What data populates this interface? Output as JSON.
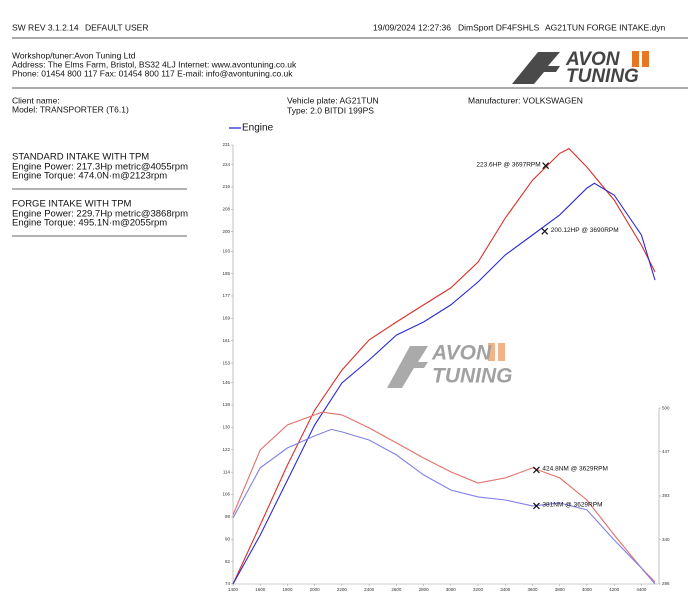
{
  "header": {
    "software": "SW REV 3.1.2.14",
    "user": "DEFAULT USER",
    "datetime": "19/09/2024 12:27:36",
    "device": "DimSport DF4FSHLS",
    "file": "AG21TUN FORGE INTAKE.dyn"
  },
  "workshop": {
    "line1": "Workshop/tuner:Avon Tuning Ltd",
    "line2": "Address: The Elms Farm, Bristol, BS32 4LJ Internet: www.avontuning.co.uk",
    "line3": "Phone: 01454 800 117 Fax: 01454 800 117 E-mail: info@avontuning.co.uk"
  },
  "logo": {
    "word1": "AVON",
    "word2": "TUNING"
  },
  "vehicle": {
    "client": "Client name:",
    "model": "Model: TRANSPORTER (T6.1)",
    "plate": "Vehicle plate: AG21TUN",
    "type": "Type: 2.0 BITDI 199PS",
    "manufacturer": "Manufacturer: VOLKSWAGEN"
  },
  "runs": [
    {
      "name": "STANDARD INTAKE WITH TPM",
      "color": "#2a2ad4",
      "power": "Engine Power: 217.3Hp metric@4055rpm",
      "torque": "Engine Torque: 474.0N·m@2123rpm"
    },
    {
      "name": "FORGE INTAKE WITH TPM",
      "color": "#d8302a",
      "power": "Engine Power: 229.7Hp metric@3868rpm",
      "torque": "Engine Torque: 495.1N·m@2055rpm"
    }
  ],
  "chart_data": {
    "type": "line",
    "legend": "Engine",
    "legend_color": "#2a2ad4",
    "xlim": [
      1400,
      4500
    ],
    "xticks": [
      1400,
      1600,
      1800,
      2000,
      2200,
      2400,
      2600,
      2800,
      3000,
      3200,
      3400,
      3600,
      3800,
      4000,
      4200,
      4400
    ],
    "ylim": [
      74,
      231
    ],
    "yticks": [
      74,
      82,
      90,
      98,
      106,
      114,
      122,
      130,
      138,
      146,
      153,
      161,
      169,
      177,
      185,
      193,
      200,
      208,
      216,
      224,
      231
    ],
    "y2lim": [
      286,
      820
    ],
    "y2ticks": [
      286,
      340,
      393,
      447,
      500
    ],
    "series": [
      {
        "color": "#d8302a",
        "x": [
          1400,
          1600,
          1800,
          2000,
          2200,
          2400,
          2600,
          2800,
          3000,
          3200,
          3400,
          3600,
          3800,
          3868,
          4000,
          4200,
          4400,
          4500
        ],
        "values": [
          74,
          95.1,
          116.6,
          136.2,
          150.5,
          161.3,
          167.7,
          173.8,
          179.9,
          189.1,
          204.9,
          218.4,
          228,
          229.7,
          223.1,
          211.3,
          195.2,
          185.6
        ]
      },
      {
        "color": "#2a2ad4",
        "x": [
          1400,
          1600,
          1800,
          2000,
          2200,
          2400,
          2600,
          2800,
          3000,
          3200,
          3400,
          3600,
          3800,
          4000,
          4055,
          4200,
          4400,
          4500
        ],
        "values": [
          74,
          91.5,
          111.2,
          130.9,
          145.9,
          154.1,
          163,
          167.7,
          173.8,
          182,
          191.7,
          198.8,
          206,
          215.6,
          217.3,
          213.1,
          198.8,
          182.7
        ]
      },
      {
        "color": "#e2706a",
        "axis": "y2",
        "x": [
          1400,
          1600,
          1800,
          2000,
          2055,
          2200,
          2400,
          2600,
          2800,
          3000,
          3200,
          3400,
          3600,
          3800,
          4000,
          4200,
          4400,
          4500
        ],
        "values": [
          370,
          449,
          479.5,
          491.7,
          495.1,
          491.7,
          475.9,
          457.6,
          439.3,
          422.3,
          408.9,
          415,
          427.2,
          415,
          388.2,
          345.6,
          305.5,
          288.4
        ]
      },
      {
        "color": "#8080e4",
        "axis": "y2",
        "x": [
          1400,
          1600,
          1800,
          2000,
          2123,
          2200,
          2400,
          2600,
          2800,
          3000,
          3200,
          3400,
          3600,
          3800,
          4000,
          4200,
          4400,
          4500
        ],
        "values": [
          366.3,
          427.2,
          451.5,
          466.1,
          474,
          471,
          461.2,
          443,
          418.7,
          400.4,
          391.9,
          388.2,
          381,
          384.6,
          376.1,
          339.5,
          305.5,
          286
        ]
      }
    ],
    "annotations": [
      {
        "text": "223.6HP @ 3697RPM",
        "x": 3697,
        "y": 223.6
      },
      {
        "text": "200.12HP @ 3690RPM",
        "x": 3690,
        "y": 200.12
      },
      {
        "text": "424.8NM @ 3629RPM",
        "x": 3629,
        "y": 424.8,
        "axis": "y2"
      },
      {
        "text": "381NM @ 3629RPM",
        "x": 3629,
        "y": 381,
        "axis": "y2"
      }
    ]
  }
}
